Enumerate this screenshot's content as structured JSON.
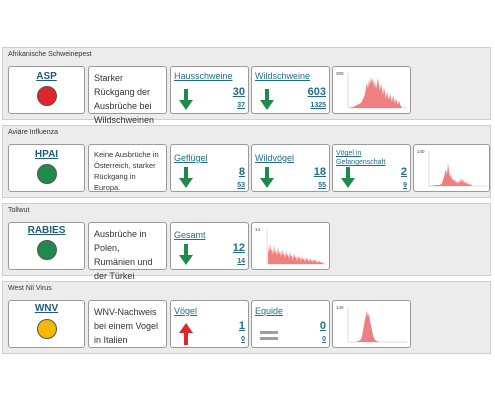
{
  "sections": [
    {
      "title": "Afrikanische Schweinepest",
      "code": "ASP",
      "status": "red",
      "description": "Starker Rückgang der Ausbrüche bei Wildschweinen",
      "metrics": [
        {
          "label": "Hausschweine",
          "value": "30",
          "sub": "37",
          "trend": "down"
        },
        {
          "label": "Wildschweine",
          "value": "603",
          "sub": "1325",
          "trend": "down"
        }
      ],
      "chart": {
        "ymax_label": "300"
      }
    },
    {
      "title": "Aviäre Influenza",
      "code": "HPAI",
      "status": "green",
      "description": "Keine Ausbrüche in Österreich, starker Rückgang in Europa.",
      "metrics": [
        {
          "label": "Geflügel",
          "value": "8",
          "sub": "53",
          "trend": "down"
        },
        {
          "label": "Wildvögel",
          "value": "18",
          "sub": "55",
          "trend": "down"
        },
        {
          "label": "Vögel in Gefangenschaft",
          "value": "2",
          "sub": "9",
          "trend": "down"
        }
      ],
      "chart": {
        "ymax_label": "140"
      }
    },
    {
      "title": "Tollwut",
      "code": "RABIES",
      "status": "green",
      "description": "Ausbrüche in Polen, Rumänien und der Türkei",
      "metrics": [
        {
          "label": "Gesamt",
          "value": "12",
          "sub": "14",
          "trend": "down"
        }
      ],
      "chart": {
        "ymax_label": "14"
      }
    },
    {
      "title": "West Nil Virus",
      "code": "WNV",
      "status": "yellow",
      "description": "WNV-Nachweis bei einem Vogel in Italien",
      "metrics": [
        {
          "label": "Vögel",
          "value": "1",
          "sub": "0",
          "trend": "up"
        },
        {
          "label": "Equide",
          "value": "0",
          "sub": "0",
          "trend": "flat"
        }
      ],
      "chart": {
        "ymax_label": "140"
      }
    }
  ],
  "colors": {
    "status_red": "#e0252b",
    "status_green": "#1f8a4c",
    "status_yellow": "#f5b800",
    "arrow_down": "#1f8a4c",
    "arrow_up": "#e0252b",
    "arrow_flat": "#9e9e9e",
    "chart_fill": "#f08080",
    "link": "#1f6f8b"
  }
}
